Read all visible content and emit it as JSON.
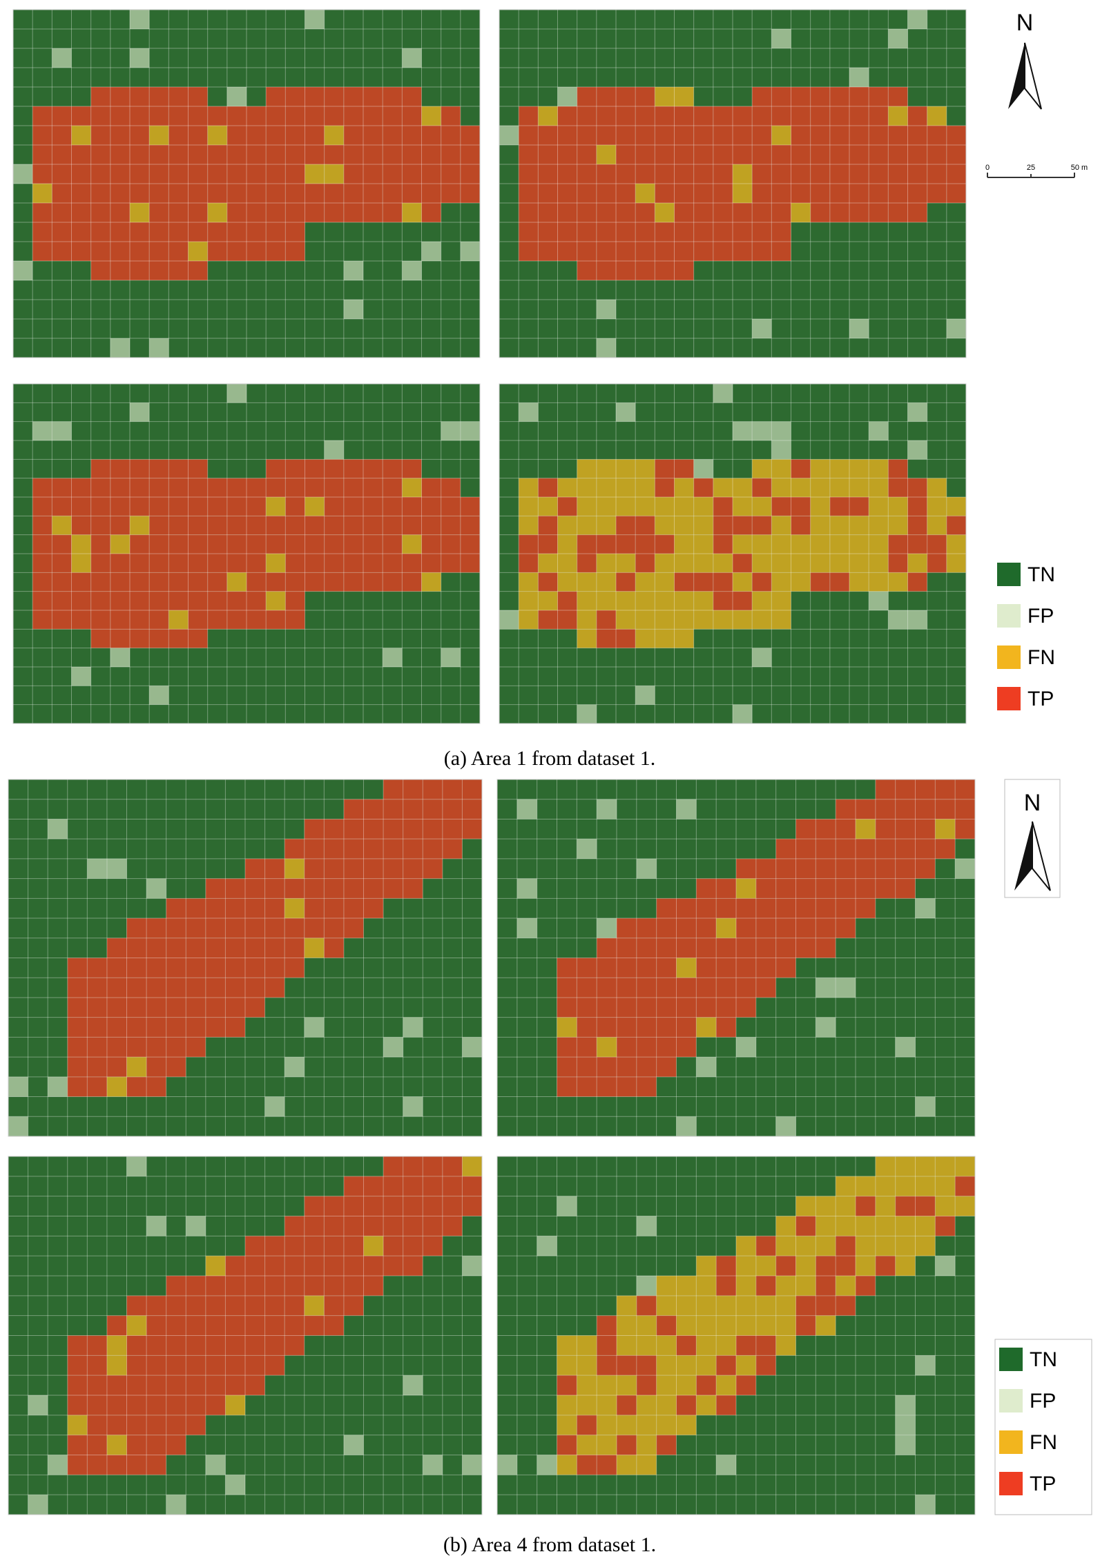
{
  "figure_a": {
    "north": "N",
    "scale_labels": [
      "0",
      "25",
      "50 m"
    ],
    "legend": [
      "TN",
      "FP",
      "FN",
      "TP"
    ],
    "caption": "(a) Area 1 from dataset 1."
  },
  "figure_b": {
    "north": "N",
    "legend": [
      "TN",
      "FP",
      "FN",
      "TP"
    ],
    "caption": "(b) Area 4 from dataset 1."
  }
}
